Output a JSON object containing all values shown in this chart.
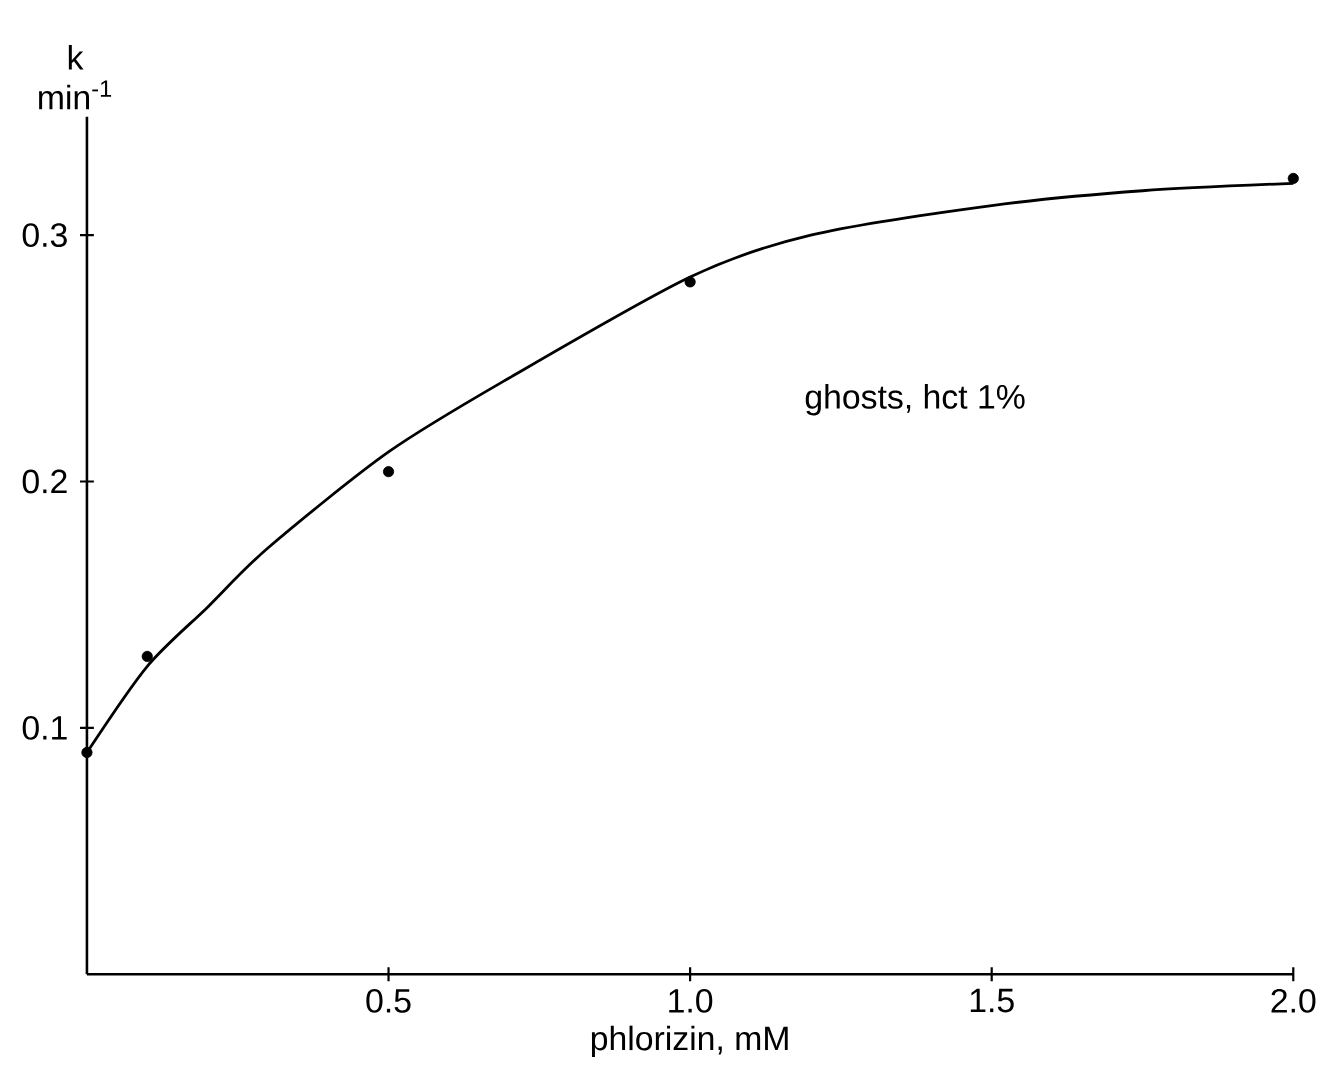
{
  "chart_data": {
    "type": "scatter",
    "xlabel": "phlorizin, mM",
    "ylabel": "k min$^{-1}$",
    "xlim": [
      0,
      2.0
    ],
    "ylim": [
      0,
      0.348
    ],
    "xticks": [
      {
        "value": 0.5,
        "label": "0.5"
      },
      {
        "value": 1.0,
        "label": "1.0"
      },
      {
        "value": 1.5,
        "label": "1.5"
      },
      {
        "value": 2.0,
        "label": "2.0"
      }
    ],
    "yticks": [
      0.1,
      0.2,
      0.3
    ],
    "annotations": [
      "ghosts, hct 1%"
    ],
    "series": [
      {
        "color": "#000000",
        "marker": "circle",
        "x": [
          0,
          0.1,
          0.5,
          1.0,
          2.0
        ],
        "values": [
          0.09,
          0.129,
          0.204,
          0.281,
          0.323
        ]
      },
      {
        "type": "line",
        "color": "#000000",
        "marker": "none",
        "line_style": "solid",
        "x": [
          0,
          0.1,
          0.2,
          0.3,
          0.5,
          0.7,
          1.0,
          1.2,
          1.5,
          1.75,
          2.0
        ],
        "values": [
          0.09,
          0.125,
          0.149,
          0.173,
          0.212,
          0.242,
          0.283,
          0.3,
          0.312,
          0.318,
          0.321
        ]
      }
    ]
  }
}
